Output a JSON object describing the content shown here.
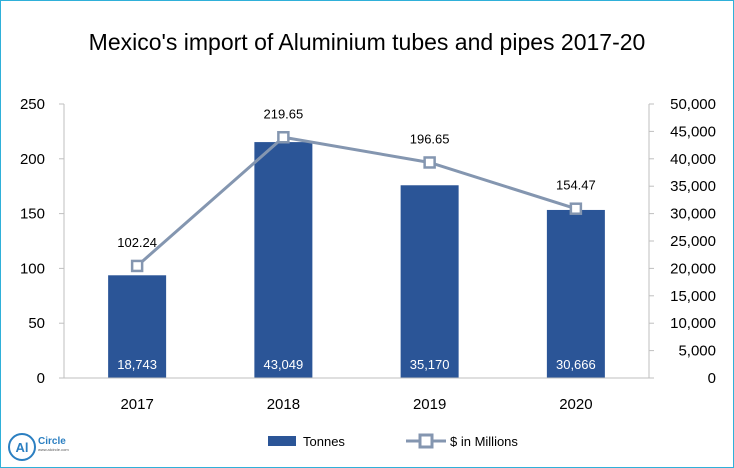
{
  "chart_data": {
    "type": "bar",
    "title": "Mexico's import of Aluminium tubes and pipes 2017-20",
    "categories": [
      "2017",
      "2018",
      "2019",
      "2020"
    ],
    "series": [
      {
        "name": "Tonnes",
        "kind": "bar",
        "axis": "right",
        "values": [
          18743,
          43049,
          35170,
          30666
        ],
        "labels": [
          "18,743",
          "43,049",
          "35,170",
          "30,666"
        ],
        "color": "#2b5597"
      },
      {
        "name": "$ in Millions",
        "kind": "line",
        "axis": "left",
        "values": [
          102.24,
          219.65,
          196.65,
          154.47
        ],
        "labels": [
          "102.24",
          "219.65",
          "196.65",
          "154.47"
        ],
        "color": "#8496b0"
      }
    ],
    "y_left": {
      "range": [
        0,
        250
      ],
      "ticks": [
        "0",
        "50",
        "100",
        "150",
        "200",
        "250"
      ]
    },
    "y_right": {
      "range": [
        0,
        50000
      ],
      "ticks": [
        "0",
        "5,000",
        "10,000",
        "15,000",
        "20,000",
        "25,000",
        "30,000",
        "35,000",
        "40,000",
        "45,000",
        "50,000"
      ]
    },
    "grid": false,
    "legend": "bottom"
  },
  "logo": {
    "text": "Al",
    "brand": "Circle",
    "url": "www.alcircle.com",
    "color": "#2b7fc1"
  }
}
